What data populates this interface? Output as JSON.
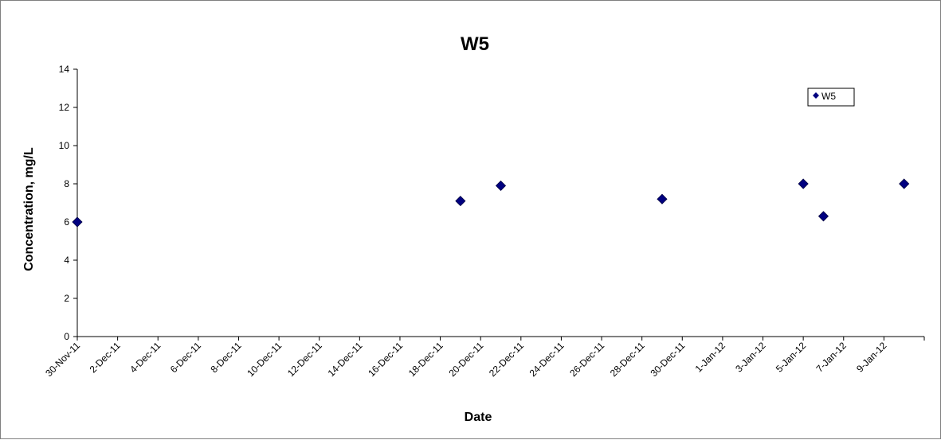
{
  "chart_data": {
    "type": "scatter",
    "title": "W5",
    "xlabel": "Date",
    "ylabel": "Concentration, mg/L",
    "ylim": [
      0,
      14
    ],
    "yticks": [
      "0",
      "2",
      "4",
      "6",
      "8",
      "10",
      "12",
      "14"
    ],
    "xlim": [
      "2011-11-30",
      "2012-01-11"
    ],
    "xticks": [
      {
        "date": "2011-11-30",
        "label": "30-Nov-11"
      },
      {
        "date": "2011-12-02",
        "label": "2-Dec-11"
      },
      {
        "date": "2011-12-04",
        "label": "4-Dec-11"
      },
      {
        "date": "2011-12-06",
        "label": "6-Dec-11"
      },
      {
        "date": "2011-12-08",
        "label": "8-Dec-11"
      },
      {
        "date": "2011-12-10",
        "label": "10-Dec-11"
      },
      {
        "date": "2011-12-12",
        "label": "12-Dec-11"
      },
      {
        "date": "2011-12-14",
        "label": "14-Dec-11"
      },
      {
        "date": "2011-12-16",
        "label": "16-Dec-11"
      },
      {
        "date": "2011-12-18",
        "label": "18-Dec-11"
      },
      {
        "date": "2011-12-20",
        "label": "20-Dec-11"
      },
      {
        "date": "2011-12-22",
        "label": "22-Dec-11"
      },
      {
        "date": "2011-12-24",
        "label": "24-Dec-11"
      },
      {
        "date": "2011-12-26",
        "label": "26-Dec-11"
      },
      {
        "date": "2011-12-28",
        "label": "28-Dec-11"
      },
      {
        "date": "2011-12-30",
        "label": "30-Dec-11"
      },
      {
        "date": "2012-01-01",
        "label": "1-Jan-12"
      },
      {
        "date": "2012-01-03",
        "label": "3-Jan-12"
      },
      {
        "date": "2012-01-05",
        "label": "5-Jan-12"
      },
      {
        "date": "2012-01-07",
        "label": "7-Jan-12"
      },
      {
        "date": "2012-01-09",
        "label": "9-Jan-12"
      }
    ],
    "grid": false,
    "legend_position": "top-right",
    "series": [
      {
        "name": "W5",
        "color": "#000080",
        "marker": "diamond",
        "points": [
          {
            "x": "2011-11-30",
            "y": 6.0
          },
          {
            "x": "2011-12-19",
            "y": 7.1
          },
          {
            "x": "2011-12-21",
            "y": 7.9
          },
          {
            "x": "2011-12-29",
            "y": 7.2
          },
          {
            "x": "2012-01-05",
            "y": 8.0
          },
          {
            "x": "2012-01-06",
            "y": 6.3
          },
          {
            "x": "2012-01-10",
            "y": 8.0
          }
        ]
      }
    ]
  }
}
